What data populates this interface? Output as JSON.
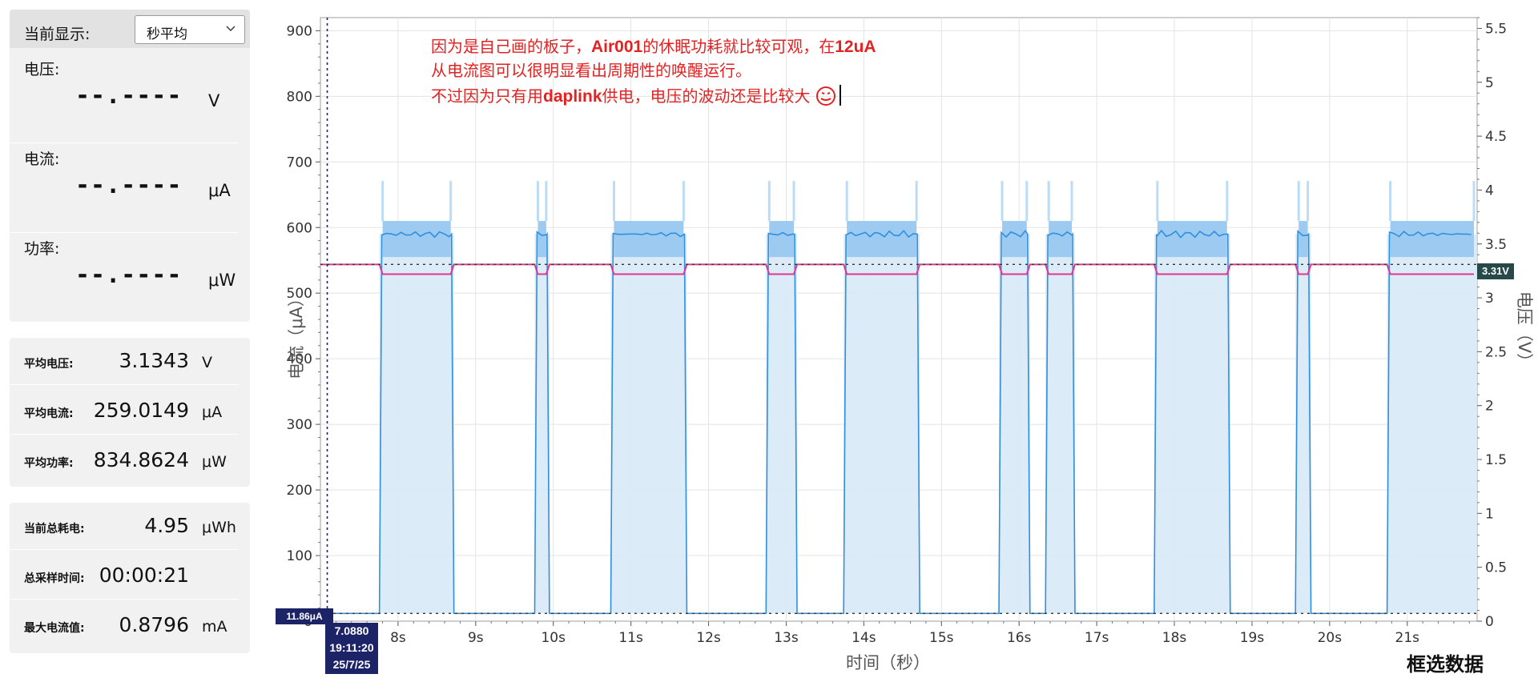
{
  "display": {
    "label": "当前显示:",
    "selected": "秒平均",
    "chevron_icon": "chevron-down-icon"
  },
  "meters": [
    {
      "label": "电压:",
      "value": "--.----",
      "unit": "V"
    },
    {
      "label": "电流:",
      "value": "--.----",
      "unit": "μA"
    },
    {
      "label": "功率:",
      "value": "--.----",
      "unit": "μW"
    }
  ],
  "averages": [
    {
      "label": "平均电压:",
      "value": "3.1343",
      "unit": "V"
    },
    {
      "label": "平均电流:",
      "value": "259.0149",
      "unit": "μA"
    },
    {
      "label": "平均功率:",
      "value": "834.8624",
      "unit": "μW"
    }
  ],
  "totals": [
    {
      "label": "当前总耗电:",
      "value": "4.95",
      "unit": "μWh"
    },
    {
      "label": "总采样时间:",
      "value": "00:00:21",
      "unit": ""
    },
    {
      "label": "最大电流值:",
      "value": "0.8796",
      "unit": "mA"
    }
  ],
  "annotation": {
    "line1_a": "因为是自己画的板子，",
    "line1_b": "Air001",
    "line1_c": "的休眠功耗就比较可观，在",
    "line1_d": "12uA",
    "line2": "从电流图可以很明显看出周期性的唤醒运行。",
    "line3_a": "不过因为只有用",
    "line3_b": "daplink",
    "line3_c": "供电，电压的波动还是比较大",
    "emoji_icon": "sweat-emoji-icon"
  },
  "cursor": {
    "time": "7.0880",
    "clock": "19:11:20",
    "date": "25/7/25"
  },
  "markers": {
    "current": "11.86μA",
    "voltage": "3.31V"
  },
  "select_button": "框选数据",
  "colors": {
    "current": "#2f8fe0",
    "current_fill": "#bcd9f2",
    "voltage": "#e0388f",
    "cursor": "#1c2366"
  },
  "chart_data": {
    "type": "line",
    "xlabel": "时间（秒）",
    "ylabel_left": "电流（μA）",
    "ylabel_right": "电压（V）",
    "xlim": [
      7.0,
      21.9
    ],
    "ylim_left": [
      0,
      920
    ],
    "ylim_right": [
      0,
      5.6
    ],
    "x_ticks": [
      "8s",
      "9s",
      "10s",
      "11s",
      "12s",
      "13s",
      "14s",
      "15s",
      "16s",
      "17s",
      "18s",
      "19s",
      "20s",
      "21s"
    ],
    "y_ticks_left": [
      0,
      100,
      200,
      300,
      400,
      500,
      600,
      700,
      800,
      900
    ],
    "y_ticks_right": [
      0,
      0.5,
      1,
      1.5,
      2,
      2.5,
      3,
      3.5,
      4,
      4.5,
      5,
      5.5
    ],
    "sleep_current": 11.86,
    "active_current": 590,
    "active_band": [
      555,
      610
    ],
    "idle_voltage": 3.31,
    "active_voltage": 3.22,
    "cursor_x": 7.088,
    "bursts": [
      [
        7.76,
        8.72
      ],
      [
        9.76,
        9.95
      ],
      [
        10.74,
        11.72
      ],
      [
        12.74,
        13.14
      ],
      [
        13.74,
        14.72
      ],
      [
        15.74,
        16.14
      ],
      [
        16.34,
        16.72
      ],
      [
        17.74,
        18.72
      ],
      [
        19.56,
        19.76
      ],
      [
        20.74,
        21.9
      ]
    ],
    "grid": true
  }
}
